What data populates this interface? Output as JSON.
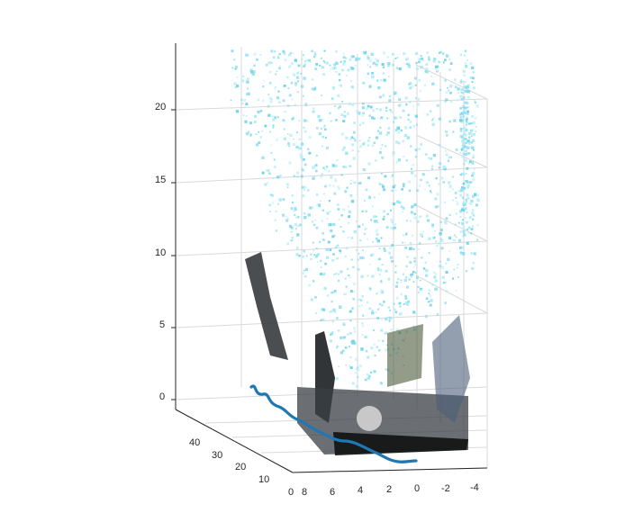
{
  "chart_data": {
    "type": "scatter",
    "title": "",
    "xlabel": "",
    "ylabel": "",
    "zlabel": "",
    "grid": true,
    "view": "3d",
    "x_ticks": [
      "8",
      "6",
      "4",
      "2",
      "0",
      "-2",
      "-4"
    ],
    "y_ticks": [
      "10",
      "20",
      "30",
      "40"
    ],
    "y_tick_zero": "0",
    "z_ticks": [
      "0",
      "5",
      "10",
      "15",
      "20"
    ],
    "series": [
      {
        "kind": "point-cloud",
        "color": "#8fe1f2",
        "secondary_colors": [
          "#6fd3ea",
          "#b7eef7",
          "#2b2f33",
          "#4a5a3a",
          "#9aa0a6"
        ]
      },
      {
        "kind": "trajectory-line",
        "color": "#1f77b4"
      }
    ]
  }
}
